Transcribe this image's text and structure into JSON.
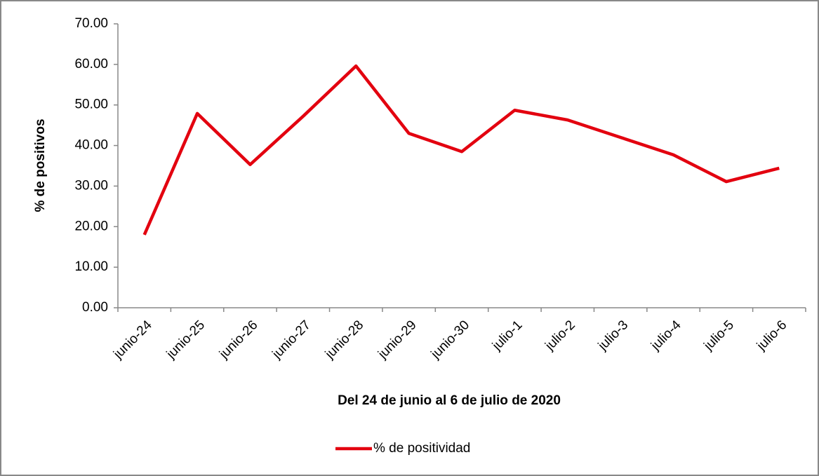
{
  "chart_data": {
    "type": "line",
    "x_label": "Del 24 de junio al 6 de julio de 2020",
    "y_label": "% de positivos",
    "categories": [
      "junio-24",
      "junio-25",
      "junio-26",
      "junio-27",
      "junio-28",
      "junio-29",
      "junio-30",
      "julio-1",
      "julio-2",
      "julio-3",
      "julio-4",
      "julio-5",
      "julio-6"
    ],
    "series": [
      {
        "name": "% de positividad",
        "color": "#e3000f",
        "values": [
          18.0,
          47.9,
          35.3,
          47.2,
          59.6,
          43.0,
          38.5,
          48.7,
          46.3,
          42.0,
          37.7,
          31.1,
          34.4
        ]
      }
    ],
    "ylim": [
      0,
      70
    ],
    "yticks": [
      {
        "value": 0,
        "label": "0.00"
      },
      {
        "value": 10,
        "label": "10.00"
      },
      {
        "value": 20,
        "label": "20.00"
      },
      {
        "value": 30,
        "label": "30.00"
      },
      {
        "value": 40,
        "label": "40.00"
      },
      {
        "value": 50,
        "label": "50.00"
      },
      {
        "value": 60,
        "label": "60.00"
      },
      {
        "value": 70,
        "label": "70.00"
      }
    ],
    "grid": false,
    "legend": "bottom"
  }
}
